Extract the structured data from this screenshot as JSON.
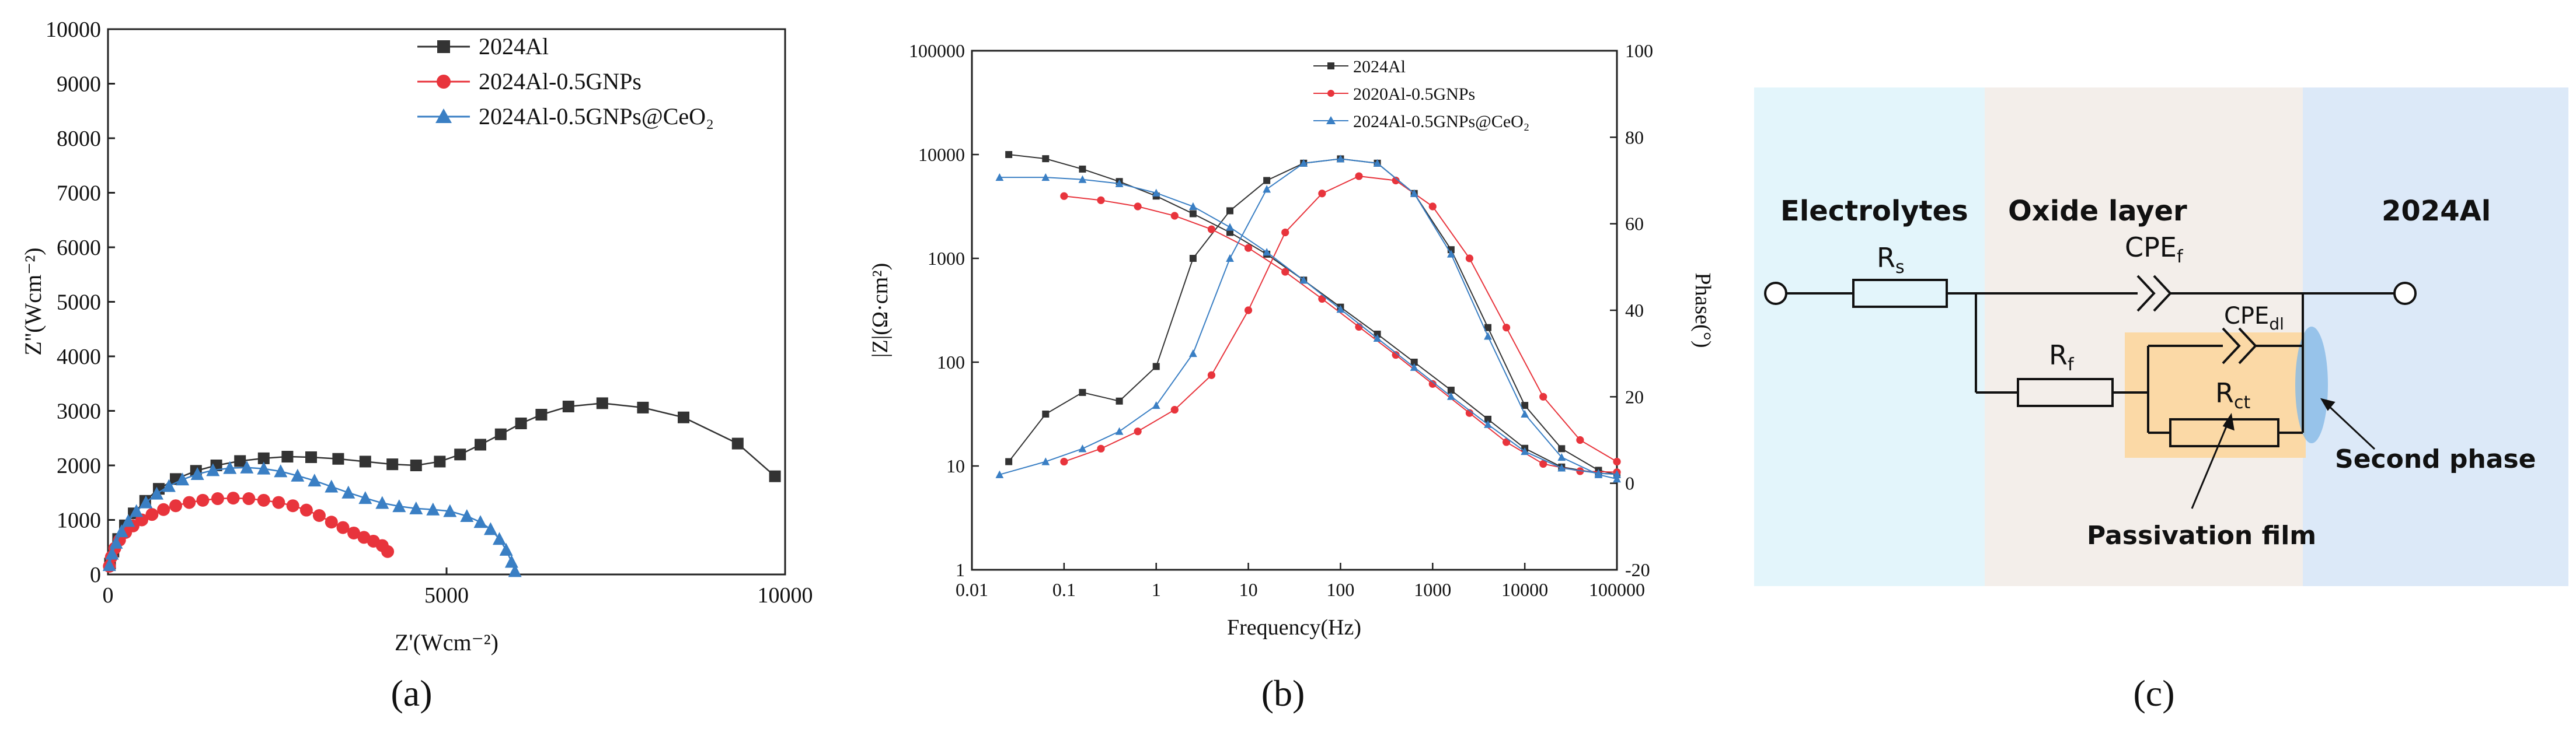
{
  "colors": {
    "black": "#333333",
    "red": "#e8343c",
    "blue": "#3a7fc4",
    "electrolyte_bg": "#e3f5fb",
    "oxide_bg": "#f3eeea",
    "metal_bg": "#dce9f8",
    "passivation_bg": "#fbd9a6",
    "second_phase": "#86b9e6"
  },
  "chart_data": [
    {
      "panel_label": "(a)",
      "type": "line",
      "title": "",
      "xlabel": "Z'(Wcm⁻²)",
      "ylabel": "Z''(Wcm⁻²)",
      "xlim": [
        0,
        10000
      ],
      "ylim": [
        0,
        10000
      ],
      "xticks": [
        "0",
        "5000",
        "10000"
      ],
      "yticks": [
        "0",
        "1000",
        "2000",
        "3000",
        "4000",
        "5000",
        "6000",
        "7000",
        "8000",
        "9000",
        "10000"
      ],
      "legend": "top-right",
      "series": [
        {
          "name": "2024Al",
          "marker": "square",
          "x": [
            30,
            80,
            150,
            250,
            380,
            550,
            750,
            1000,
            1300,
            1600,
            1950,
            2300,
            2650,
            3000,
            3400,
            3800,
            4200,
            4550,
            4900,
            5200,
            5500,
            5800,
            6100,
            6400,
            6800,
            7300,
            7900,
            8500,
            9300,
            9850
          ],
          "y": [
            200,
            420,
            650,
            900,
            1120,
            1350,
            1570,
            1750,
            1900,
            2000,
            2080,
            2130,
            2160,
            2150,
            2120,
            2070,
            2020,
            2000,
            2070,
            2200,
            2380,
            2570,
            2770,
            2930,
            3080,
            3140,
            3060,
            2880,
            2400,
            1800
          ]
        },
        {
          "name": "2024Al-0.5GNPs",
          "marker": "circle",
          "x": [
            20,
            50,
            100,
            170,
            260,
            370,
            500,
            650,
            820,
            1000,
            1200,
            1400,
            1620,
            1850,
            2080,
            2300,
            2520,
            2730,
            2930,
            3120,
            3300,
            3470,
            3630,
            3780,
            3920,
            4050,
            4130
          ],
          "y": [
            150,
            320,
            480,
            630,
            770,
            890,
            1000,
            1100,
            1190,
            1260,
            1320,
            1360,
            1390,
            1400,
            1390,
            1360,
            1320,
            1260,
            1180,
            1080,
            960,
            860,
            760,
            680,
            610,
            530,
            420
          ]
        },
        {
          "name": "2024Al-0.5GNPs@CeO₂",
          "marker": "triangle",
          "x": [
            20,
            60,
            120,
            200,
            300,
            420,
            560,
            720,
            900,
            1100,
            1320,
            1550,
            1800,
            2050,
            2300,
            2550,
            2800,
            3050,
            3300,
            3550,
            3800,
            4050,
            4300,
            4550,
            4800,
            5050,
            5300,
            5500,
            5650,
            5780,
            5880,
            5960,
            6010
          ],
          "y": [
            170,
            380,
            580,
            790,
            980,
            1160,
            1320,
            1480,
            1620,
            1740,
            1840,
            1910,
            1950,
            1960,
            1940,
            1890,
            1810,
            1720,
            1610,
            1500,
            1400,
            1310,
            1250,
            1210,
            1190,
            1160,
            1070,
            960,
            830,
            650,
            450,
            230,
            60
          ]
        }
      ]
    },
    {
      "panel_label": "(b)",
      "type": "line",
      "xlabel": "Frequency(Hz)",
      "ylabel_left": "|Z|(Ω·cm²)",
      "ylabel_right": "Phase(°)",
      "xscale": "log",
      "yscale_left": "log",
      "xlim": [
        0.01,
        100000
      ],
      "ylim_left": [
        1,
        100000
      ],
      "ylim_right": [
        -20,
        100
      ],
      "xticks": [
        "0.01",
        "0.1",
        "1",
        "10",
        "100",
        "1000",
        "10000",
        "100000"
      ],
      "yticks_left": [
        "1",
        "10",
        "100",
        "1000",
        "10000",
        "100000"
      ],
      "yticks_right": [
        "-20",
        "0",
        "20",
        "40",
        "60",
        "80",
        "100"
      ],
      "legend": "top-center",
      "series": [
        {
          "name": "2024Al",
          "marker": "square",
          "axis": "both",
          "logf": [
            -1.6,
            -1.2,
            -0.8,
            -0.4,
            0,
            0.4,
            0.8,
            1.2,
            1.6,
            2.0,
            2.4,
            2.8,
            3.2,
            3.6,
            4.0,
            4.4,
            4.8,
            5.0
          ],
          "logz": [
            4.0,
            3.96,
            3.86,
            3.74,
            3.6,
            3.43,
            3.25,
            3.04,
            2.79,
            2.53,
            2.27,
            2.0,
            1.73,
            1.45,
            1.17,
            0.99,
            0.93,
            0.92
          ],
          "phase": [
            5,
            16,
            21,
            19,
            27,
            52,
            63,
            70,
            74,
            75,
            74,
            67,
            54,
            36,
            18,
            8,
            3,
            2
          ]
        },
        {
          "name": "2020Al-0.5GNPs",
          "marker": "circle",
          "axis": "both",
          "logf": [
            -1,
            -0.6,
            -0.2,
            0.2,
            0.6,
            1.0,
            1.4,
            1.8,
            2.2,
            2.6,
            3.0,
            3.4,
            3.8,
            4.2,
            4.6,
            5.0
          ],
          "logz": [
            3.6,
            3.56,
            3.5,
            3.41,
            3.28,
            3.1,
            2.87,
            2.61,
            2.34,
            2.07,
            1.79,
            1.51,
            1.23,
            1.02,
            0.95,
            0.94
          ],
          "phase": [
            5,
            8,
            12,
            17,
            25,
            40,
            58,
            67,
            71,
            70,
            64,
            52,
            36,
            20,
            10,
            5
          ]
        },
        {
          "name": "2024Al-0.5GNPs@CeO₂",
          "marker": "triangle",
          "axis": "both",
          "logf": [
            -1.7,
            -1.2,
            -0.8,
            -0.4,
            0,
            0.4,
            0.8,
            1.2,
            1.6,
            2.0,
            2.4,
            2.8,
            3.2,
            3.6,
            4.0,
            4.4,
            4.8,
            5.0
          ],
          "logz": [
            3.78,
            3.78,
            3.76,
            3.72,
            3.63,
            3.5,
            3.3,
            3.06,
            2.79,
            2.51,
            2.23,
            1.95,
            1.67,
            1.4,
            1.14,
            0.98,
            0.93,
            0.92
          ],
          "phase": [
            2,
            5,
            8,
            12,
            18,
            30,
            52,
            68,
            74,
            75,
            74,
            67,
            53,
            34,
            16,
            6,
            2,
            1
          ]
        }
      ]
    }
  ],
  "circuit": {
    "panel_label": "(c)",
    "regions": {
      "electrolytes": "Electrolytes",
      "oxide_layer": "Oxide layer",
      "metal": "2024Al"
    },
    "elements": {
      "rs_main": "R",
      "rs_sub": "s",
      "cpef_main": "CPE",
      "cpef_sub": "f",
      "rf_main": "R",
      "rf_sub": "f",
      "cpedl_main": "CPE",
      "cpedl_sub": "dl",
      "rct_main": "R",
      "rct_sub": "ct"
    },
    "annotations": {
      "second_phase": "Second phase",
      "passivation_film": "Passivation film"
    }
  }
}
